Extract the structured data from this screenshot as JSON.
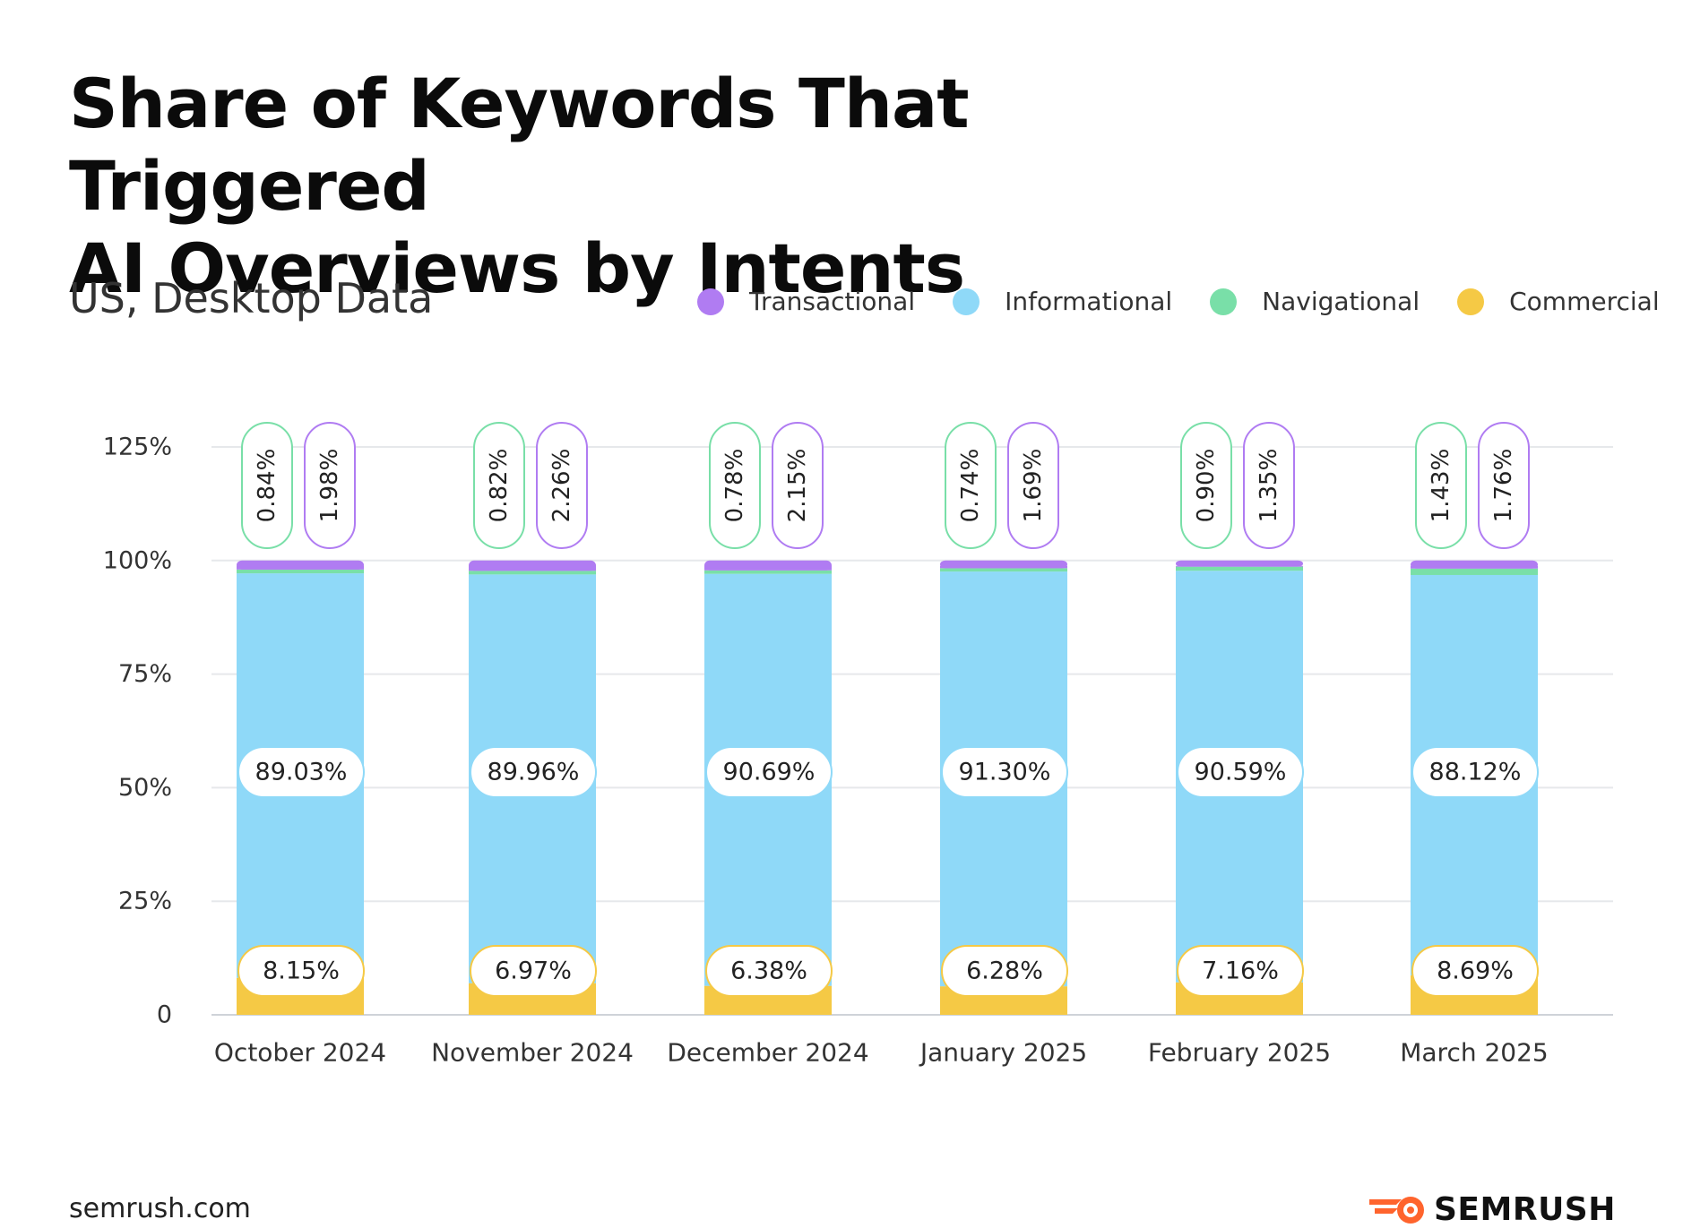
{
  "header": {
    "title_line1": "Share of Keywords That Triggered",
    "title_line2": "AI Overviews by Intents",
    "subtitle": "US, Desktop Data"
  },
  "legend": [
    {
      "label": "Transactional",
      "color": "#b07cf2"
    },
    {
      "label": "Informational",
      "color": "#8fd9f8"
    },
    {
      "label": "Navigational",
      "color": "#79dfa8"
    },
    {
      "label": "Commercial",
      "color": "#f5c945"
    }
  ],
  "footer": {
    "url": "semrush.com",
    "brand": "SEMRUSH",
    "brand_icon": "semrush-fire-logo-icon",
    "brand_color": "#ff642d"
  },
  "chart_data": {
    "type": "bar",
    "stacked": true,
    "categories": [
      "October 2024",
      "November 2024",
      "December 2024",
      "January 2025",
      "February 2025",
      "March 2025"
    ],
    "series": [
      {
        "name": "Commercial",
        "values": [
          8.15,
          6.97,
          6.38,
          6.28,
          7.16,
          8.69
        ]
      },
      {
        "name": "Informational",
        "values": [
          89.03,
          89.96,
          90.69,
          91.3,
          90.59,
          88.12
        ]
      },
      {
        "name": "Navigational",
        "values": [
          0.84,
          0.82,
          0.78,
          0.74,
          0.9,
          1.43
        ]
      },
      {
        "name": "Transactional",
        "values": [
          1.98,
          2.26,
          2.15,
          1.69,
          1.35,
          1.76
        ]
      }
    ],
    "data_labels": {
      "Commercial": [
        "8.15%",
        "6.97%",
        "6.38%",
        "6.28%",
        "7.16%",
        "8.69%"
      ],
      "Informational": [
        "89.03%",
        "89.96%",
        "90.69%",
        "91.30%",
        "90.59%",
        "88.12%"
      ],
      "Navigational": [
        "0.84%",
        "0.82%",
        "0.78%",
        "0.74%",
        "0.90%",
        "1.43%"
      ],
      "Transactional": [
        "1.98%",
        "2.26%",
        "2.15%",
        "1.69%",
        "1.35%",
        "1.76%"
      ]
    },
    "ylim": [
      0,
      125
    ],
    "yticks": [
      0,
      25,
      50,
      75,
      100,
      125
    ],
    "ytick_labels": [
      "0",
      "25%",
      "50%",
      "75%",
      "100%",
      "125%"
    ],
    "grid": true,
    "legend_position": "top-right"
  }
}
